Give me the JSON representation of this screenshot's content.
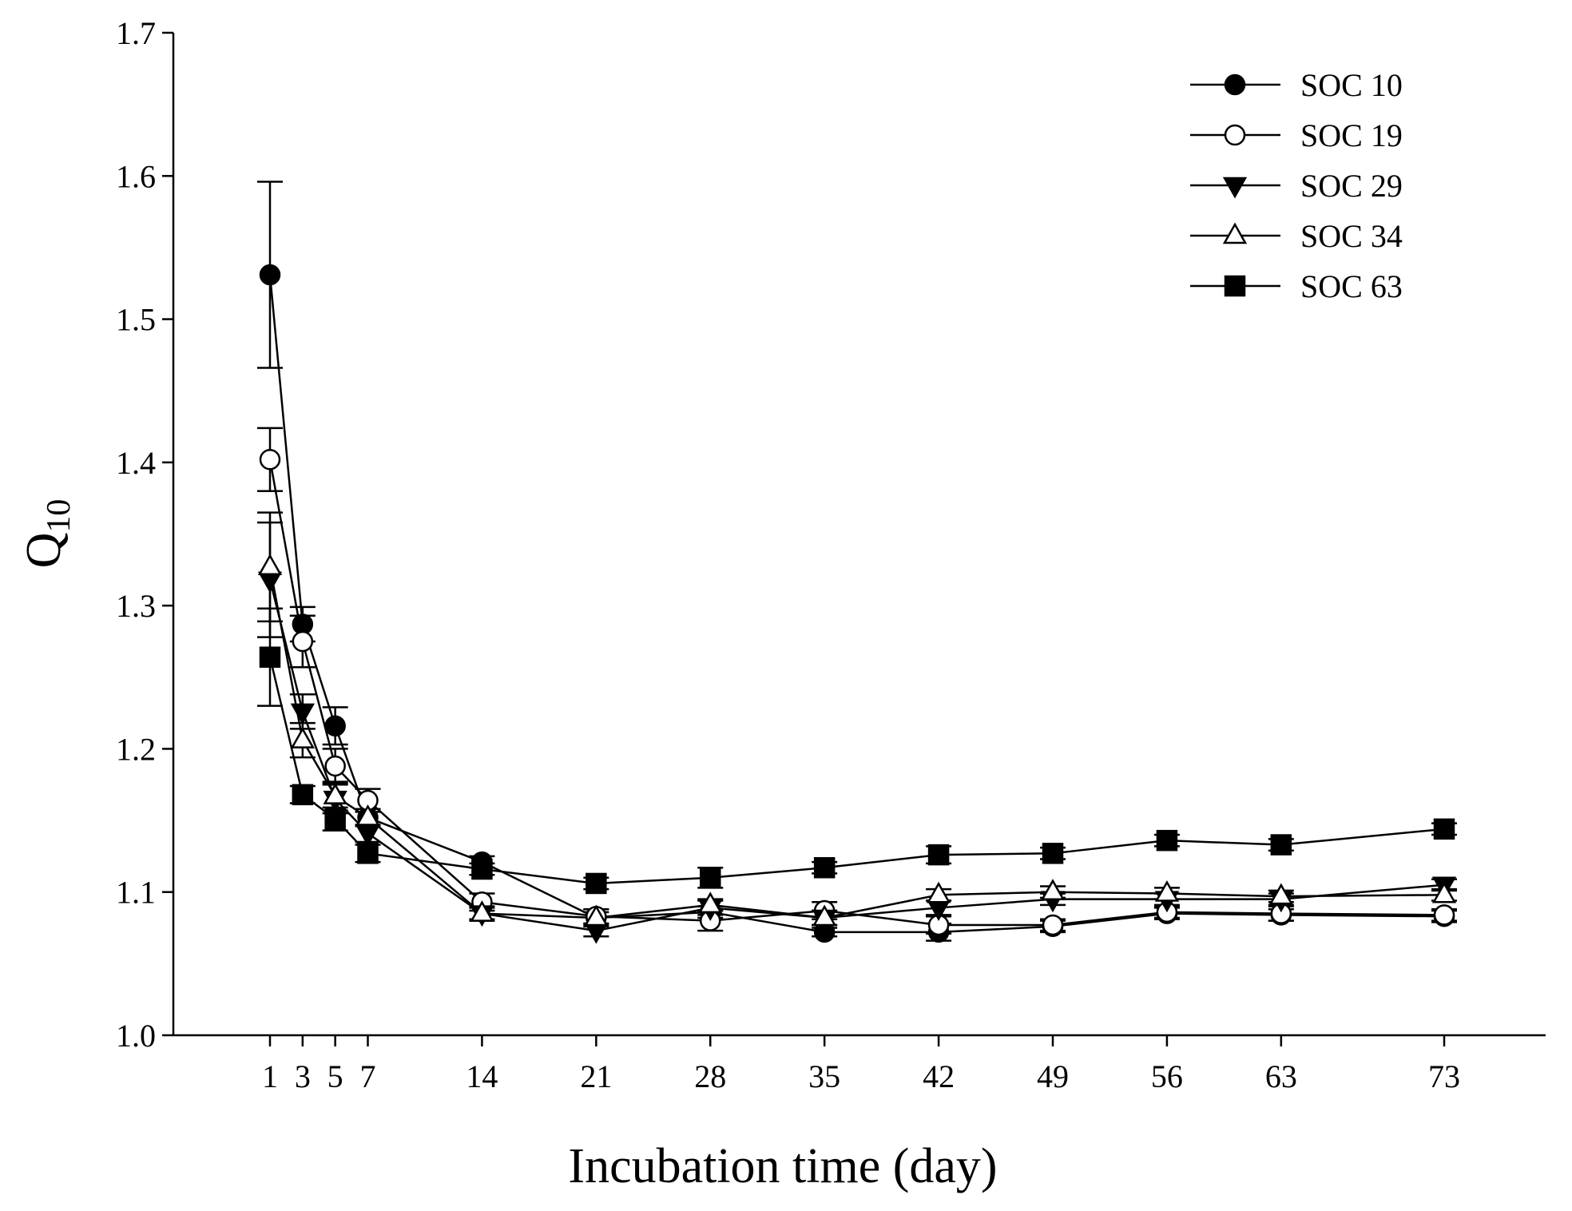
{
  "chart_data": {
    "type": "line",
    "title": "",
    "xlabel": "Incubation time (day)",
    "ylabel_main": "Q",
    "ylabel_sub": "10",
    "x": [
      1,
      3,
      5,
      7,
      14,
      21,
      28,
      35,
      42,
      49,
      56,
      63,
      73
    ],
    "x_tick_labels": [
      "1",
      "3",
      "5",
      "7",
      "14",
      "21",
      "28",
      "35",
      "42",
      "49",
      "56",
      "63",
      "73"
    ],
    "xlim": [
      -5,
      79
    ],
    "ylim": [
      1.0,
      1.7
    ],
    "y_ticks": [
      1.0,
      1.1,
      1.2,
      1.3,
      1.4,
      1.5,
      1.6,
      1.7
    ],
    "y_tick_labels": [
      "1.0",
      "1.1",
      "1.2",
      "1.3",
      "1.4",
      "1.5",
      "1.6",
      "1.7"
    ],
    "legend_position": "top-right",
    "series": [
      {
        "name": "SOC 10",
        "marker": "circle-filled",
        "values": [
          1.531,
          1.287,
          1.216,
          1.152,
          1.121,
          1.082,
          1.086,
          1.072,
          1.072,
          1.076,
          1.085,
          1.084,
          1.083
        ],
        "errors": [
          0.065,
          0.012,
          0.013,
          0.006,
          0.004,
          0.004,
          0.004,
          0.003,
          0.006,
          0.004,
          0.004,
          0.004,
          0.004
        ]
      },
      {
        "name": "SOC 19",
        "marker": "circle-open",
        "values": [
          1.402,
          1.275,
          1.188,
          1.164,
          1.093,
          1.083,
          1.08,
          1.087,
          1.077,
          1.077,
          1.086,
          1.085,
          1.084
        ],
        "errors": [
          0.022,
          0.018,
          0.012,
          0.008,
          0.006,
          0.005,
          0.007,
          0.006,
          0.006,
          0.004,
          0.004,
          0.005,
          0.004
        ]
      },
      {
        "name": "SOC 29",
        "marker": "triangle-down-filled",
        "values": [
          1.318,
          1.226,
          1.165,
          1.141,
          1.085,
          1.073,
          1.089,
          1.082,
          1.089,
          1.095,
          1.095,
          1.095,
          1.105
        ],
        "errors": [
          0.04,
          0.012,
          0.01,
          0.006,
          0.004,
          0.004,
          0.005,
          0.005,
          0.005,
          0.004,
          0.004,
          0.004,
          0.004
        ]
      },
      {
        "name": "SOC 34",
        "marker": "triangle-up-open",
        "values": [
          1.327,
          1.206,
          1.167,
          1.152,
          1.085,
          1.082,
          1.091,
          1.082,
          1.098,
          1.1,
          1.099,
          1.097,
          1.098
        ],
        "errors": [
          0.038,
          0.012,
          0.01,
          0.006,
          0.005,
          0.006,
          0.004,
          0.005,
          0.004,
          0.004,
          0.004,
          0.004,
          0.004
        ]
      },
      {
        "name": "SOC 63",
        "marker": "square-filled",
        "values": [
          1.264,
          1.168,
          1.151,
          1.127,
          1.116,
          1.106,
          1.11,
          1.117,
          1.126,
          1.127,
          1.136,
          1.133,
          1.144
        ],
        "errors": [
          0.034,
          0.006,
          0.008,
          0.006,
          0.004,
          0.004,
          0.007,
          0.004,
          0.006,
          0.004,
          0.004,
          0.004,
          0.004
        ]
      }
    ]
  }
}
